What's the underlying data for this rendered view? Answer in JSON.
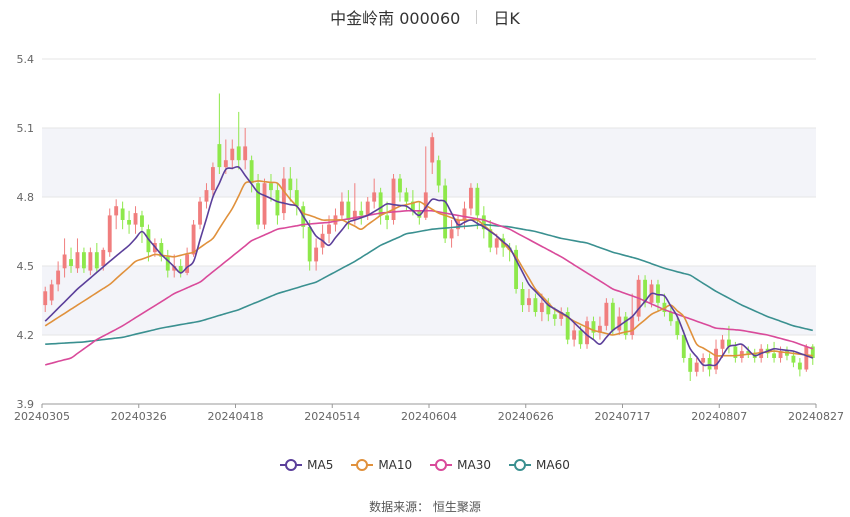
{
  "header": {
    "name": "中金岭南 000060",
    "period": "日K"
  },
  "source_text": "数据来源： 恒生聚源",
  "legend": [
    {
      "label": "MA5",
      "color": "#5b3f9a"
    },
    {
      "label": "MA10",
      "color": "#e0913c"
    },
    {
      "label": "MA30",
      "color": "#d94a9a"
    },
    {
      "label": "MA60",
      "color": "#3a9090"
    }
  ],
  "colors": {
    "up": "#f07e7e",
    "down": "#8ee84b",
    "band": "#f3f4f9",
    "grid": "#e6e6e6"
  },
  "chart_data": {
    "type": "candlestick",
    "title": "中金岭南 000060",
    "subtitle": "日K",
    "ylim": [
      3.9,
      5.4
    ],
    "y_ticks": [
      3.9,
      4.2,
      4.5,
      4.8,
      5.1,
      5.4
    ],
    "x_ticks": [
      "20240305",
      "20240326",
      "20240418",
      "20240514",
      "20240604",
      "20240626",
      "20240717",
      "20240807",
      "20240827"
    ],
    "n_bars": 120,
    "grid": true,
    "legend_position": "bottom",
    "candles": [
      [
        4.33,
        4.39,
        4.3,
        4.41
      ],
      [
        4.35,
        4.42,
        4.33,
        4.44
      ],
      [
        4.42,
        4.48,
        4.39,
        4.52
      ],
      [
        4.49,
        4.55,
        4.45,
        4.62
      ],
      [
        4.53,
        4.5,
        4.47,
        4.58
      ],
      [
        4.49,
        4.56,
        4.47,
        4.62
      ],
      [
        4.56,
        4.49,
        4.47,
        4.58
      ],
      [
        4.48,
        4.56,
        4.46,
        4.58
      ],
      [
        4.56,
        4.49,
        4.47,
        4.6
      ],
      [
        4.5,
        4.57,
        4.48,
        4.58
      ],
      [
        4.56,
        4.72,
        4.54,
        4.75
      ],
      [
        4.72,
        4.76,
        4.66,
        4.79
      ],
      [
        4.75,
        4.7,
        4.66,
        4.78
      ],
      [
        4.7,
        4.68,
        4.64,
        4.74
      ],
      [
        4.68,
        4.73,
        4.64,
        4.76
      ],
      [
        4.72,
        4.67,
        4.6,
        4.74
      ],
      [
        4.66,
        4.56,
        4.52,
        4.68
      ],
      [
        4.56,
        4.6,
        4.54,
        4.62
      ],
      [
        4.6,
        4.54,
        4.52,
        4.62
      ],
      [
        4.54,
        4.48,
        4.45,
        4.57
      ],
      [
        4.48,
        4.5,
        4.45,
        4.55
      ],
      [
        4.5,
        4.47,
        4.45,
        4.53
      ],
      [
        4.47,
        4.55,
        4.46,
        4.58
      ],
      [
        4.55,
        4.68,
        4.54,
        4.7
      ],
      [
        4.68,
        4.78,
        4.66,
        4.8
      ],
      [
        4.78,
        4.83,
        4.75,
        4.86
      ],
      [
        4.83,
        4.93,
        4.8,
        4.95
      ],
      [
        5.03,
        4.93,
        4.9,
        5.25
      ],
      [
        4.93,
        4.96,
        4.9,
        5.05
      ],
      [
        4.96,
        5.01,
        4.92,
        5.05
      ],
      [
        5.02,
        4.96,
        4.92,
        5.17
      ],
      [
        4.96,
        5.02,
        4.92,
        5.1
      ],
      [
        4.96,
        4.86,
        4.82,
        4.98
      ],
      [
        4.86,
        4.68,
        4.66,
        4.9
      ],
      [
        4.68,
        4.86,
        4.66,
        4.88
      ],
      [
        4.86,
        4.83,
        4.78,
        4.9
      ],
      [
        4.83,
        4.72,
        4.68,
        4.86
      ],
      [
        4.73,
        4.88,
        4.7,
        4.93
      ],
      [
        4.88,
        4.83,
        4.78,
        4.93
      ],
      [
        4.83,
        4.76,
        4.72,
        4.88
      ],
      [
        4.76,
        4.67,
        4.62,
        4.78
      ],
      [
        4.67,
        4.52,
        4.48,
        4.7
      ],
      [
        4.52,
        4.58,
        4.48,
        4.62
      ],
      [
        4.58,
        4.64,
        4.55,
        4.68
      ],
      [
        4.64,
        4.68,
        4.6,
        4.72
      ],
      [
        4.68,
        4.72,
        4.65,
        4.75
      ],
      [
        4.72,
        4.78,
        4.7,
        4.82
      ],
      [
        4.78,
        4.7,
        4.66,
        4.83
      ],
      [
        4.7,
        4.74,
        4.68,
        4.86
      ],
      [
        4.74,
        4.72,
        4.68,
        4.78
      ],
      [
        4.72,
        4.78,
        4.7,
        4.8
      ],
      [
        4.78,
        4.82,
        4.75,
        4.88
      ],
      [
        4.82,
        4.72,
        4.68,
        4.84
      ],
      [
        4.72,
        4.7,
        4.66,
        4.78
      ],
      [
        4.7,
        4.88,
        4.68,
        4.9
      ],
      [
        4.88,
        4.82,
        4.78,
        4.9
      ],
      [
        4.82,
        4.78,
        4.74,
        4.84
      ],
      [
        4.78,
        4.74,
        4.72,
        4.83
      ],
      [
        4.74,
        4.71,
        4.68,
        4.78
      ],
      [
        4.71,
        4.82,
        4.7,
        5.02
      ],
      [
        4.95,
        5.06,
        4.9,
        5.08
      ],
      [
        4.96,
        4.85,
        4.82,
        4.98
      ],
      [
        4.85,
        4.62,
        4.6,
        4.88
      ],
      [
        4.62,
        4.66,
        4.58,
        4.7
      ],
      [
        4.66,
        4.7,
        4.63,
        4.72
      ],
      [
        4.7,
        4.75,
        4.66,
        4.78
      ],
      [
        4.75,
        4.84,
        4.72,
        4.86
      ],
      [
        4.84,
        4.72,
        4.66,
        4.86
      ],
      [
        4.72,
        4.66,
        4.62,
        4.76
      ],
      [
        4.66,
        4.58,
        4.56,
        4.7
      ],
      [
        4.58,
        4.62,
        4.55,
        4.64
      ],
      [
        4.62,
        4.58,
        4.54,
        4.64
      ],
      [
        4.58,
        4.57,
        4.52,
        4.6
      ],
      [
        4.57,
        4.4,
        4.38,
        4.59
      ],
      [
        4.4,
        4.33,
        4.3,
        4.43
      ],
      [
        4.33,
        4.36,
        4.3,
        4.4
      ],
      [
        4.36,
        4.3,
        4.28,
        4.38
      ],
      [
        4.3,
        4.34,
        4.26,
        4.38
      ],
      [
        4.34,
        4.29,
        4.26,
        4.36
      ],
      [
        4.29,
        4.27,
        4.24,
        4.32
      ],
      [
        4.27,
        4.3,
        4.24,
        4.32
      ],
      [
        4.3,
        4.18,
        4.16,
        4.32
      ],
      [
        4.18,
        4.22,
        4.15,
        4.26
      ],
      [
        4.22,
        4.16,
        4.14,
        4.24
      ],
      [
        4.16,
        4.26,
        4.14,
        4.28
      ],
      [
        4.26,
        4.21,
        4.18,
        4.28
      ],
      [
        4.21,
        4.24,
        4.18,
        4.28
      ],
      [
        4.24,
        4.34,
        4.22,
        4.36
      ],
      [
        4.34,
        4.22,
        4.2,
        4.36
      ],
      [
        4.22,
        4.28,
        4.2,
        4.32
      ],
      [
        4.28,
        4.2,
        4.18,
        4.3
      ],
      [
        4.2,
        4.28,
        4.18,
        4.38
      ],
      [
        4.28,
        4.44,
        4.26,
        4.46
      ],
      [
        4.44,
        4.34,
        4.32,
        4.46
      ],
      [
        4.34,
        4.42,
        4.32,
        4.44
      ],
      [
        4.42,
        4.34,
        4.3,
        4.44
      ],
      [
        4.34,
        4.3,
        4.28,
        4.38
      ],
      [
        4.3,
        4.26,
        4.24,
        4.32
      ],
      [
        4.26,
        4.2,
        4.18,
        4.28
      ],
      [
        4.2,
        4.1,
        4.08,
        4.22
      ],
      [
        4.1,
        4.04,
        4.0,
        4.12
      ],
      [
        4.04,
        4.08,
        4.02,
        4.1
      ],
      [
        4.08,
        4.1,
        4.04,
        4.12
      ],
      [
        4.1,
        4.05,
        4.02,
        4.12
      ],
      [
        4.05,
        4.14,
        4.03,
        4.18
      ],
      [
        4.14,
        4.18,
        4.1,
        4.2
      ],
      [
        4.18,
        4.15,
        4.12,
        4.24
      ],
      [
        4.15,
        4.1,
        4.08,
        4.17
      ],
      [
        4.1,
        4.13,
        4.08,
        4.16
      ],
      [
        4.13,
        4.12,
        4.1,
        4.15
      ],
      [
        4.12,
        4.1,
        4.08,
        4.14
      ],
      [
        4.1,
        4.14,
        4.08,
        4.16
      ],
      [
        4.14,
        4.12,
        4.1,
        4.16
      ],
      [
        4.12,
        4.1,
        4.08,
        4.17
      ],
      [
        4.1,
        4.13,
        4.08,
        4.15
      ],
      [
        4.13,
        4.11,
        4.09,
        4.15
      ],
      [
        4.11,
        4.08,
        4.06,
        4.13
      ],
      [
        4.08,
        4.05,
        4.02,
        4.1
      ],
      [
        4.05,
        4.15,
        4.04,
        4.16
      ],
      [
        4.15,
        4.1,
        4.07,
        4.16
      ]
    ],
    "series": [
      {
        "name": "MA5",
        "anchors": [
          [
            0,
            4.26
          ],
          [
            5,
            4.4
          ],
          [
            10,
            4.52
          ],
          [
            13,
            4.59
          ],
          [
            15,
            4.65
          ],
          [
            18,
            4.55
          ],
          [
            21,
            4.47
          ],
          [
            23,
            4.52
          ],
          [
            26,
            4.8
          ],
          [
            28,
            4.92
          ],
          [
            30,
            4.93
          ],
          [
            33,
            4.82
          ],
          [
            36,
            4.78
          ],
          [
            39,
            4.76
          ],
          [
            42,
            4.63
          ],
          [
            44,
            4.59
          ],
          [
            47,
            4.69
          ],
          [
            50,
            4.72
          ],
          [
            53,
            4.77
          ],
          [
            56,
            4.76
          ],
          [
            58,
            4.72
          ],
          [
            60,
            4.79
          ],
          [
            62,
            4.78
          ],
          [
            64,
            4.68
          ],
          [
            66,
            4.7
          ],
          [
            68,
            4.67
          ],
          [
            70,
            4.63
          ],
          [
            72,
            4.58
          ],
          [
            75,
            4.42
          ],
          [
            78,
            4.33
          ],
          [
            81,
            4.28
          ],
          [
            84,
            4.2
          ],
          [
            86,
            4.16
          ],
          [
            88,
            4.22
          ],
          [
            91,
            4.28
          ],
          [
            94,
            4.38
          ],
          [
            96,
            4.37
          ],
          [
            98,
            4.28
          ],
          [
            100,
            4.14
          ],
          [
            102,
            4.07
          ],
          [
            104,
            4.07
          ],
          [
            106,
            4.15
          ],
          [
            108,
            4.16
          ],
          [
            110,
            4.11
          ],
          [
            113,
            4.14
          ],
          [
            116,
            4.13
          ],
          [
            119,
            4.1
          ]
        ]
      },
      {
        "name": "MA10",
        "anchors": [
          [
            0,
            4.24
          ],
          [
            5,
            4.33
          ],
          [
            10,
            4.42
          ],
          [
            14,
            4.52
          ],
          [
            17,
            4.55
          ],
          [
            20,
            4.54
          ],
          [
            23,
            4.56
          ],
          [
            26,
            4.62
          ],
          [
            29,
            4.75
          ],
          [
            31,
            4.86
          ],
          [
            33,
            4.87
          ],
          [
            36,
            4.86
          ],
          [
            38,
            4.79
          ],
          [
            40,
            4.73
          ],
          [
            43,
            4.7
          ],
          [
            46,
            4.7
          ],
          [
            49,
            4.66
          ],
          [
            52,
            4.72
          ],
          [
            55,
            4.76
          ],
          [
            58,
            4.78
          ],
          [
            61,
            4.73
          ],
          [
            64,
            4.7
          ],
          [
            67,
            4.7
          ],
          [
            70,
            4.63
          ],
          [
            73,
            4.54
          ],
          [
            76,
            4.4
          ],
          [
            79,
            4.31
          ],
          [
            82,
            4.26
          ],
          [
            85,
            4.22
          ],
          [
            88,
            4.2
          ],
          [
            91,
            4.22
          ],
          [
            94,
            4.29
          ],
          [
            97,
            4.33
          ],
          [
            99,
            4.28
          ],
          [
            101,
            4.16
          ],
          [
            104,
            4.11
          ],
          [
            107,
            4.11
          ],
          [
            110,
            4.12
          ],
          [
            113,
            4.13
          ],
          [
            116,
            4.12
          ],
          [
            119,
            4.11
          ]
        ]
      },
      {
        "name": "MA30",
        "anchors": [
          [
            0,
            4.07
          ],
          [
            4,
            4.1
          ],
          [
            8,
            4.18
          ],
          [
            12,
            4.24
          ],
          [
            16,
            4.31
          ],
          [
            20,
            4.38
          ],
          [
            24,
            4.43
          ],
          [
            28,
            4.52
          ],
          [
            32,
            4.61
          ],
          [
            36,
            4.66
          ],
          [
            40,
            4.68
          ],
          [
            44,
            4.69
          ],
          [
            48,
            4.71
          ],
          [
            52,
            4.73
          ],
          [
            56,
            4.74
          ],
          [
            60,
            4.74
          ],
          [
            64,
            4.72
          ],
          [
            68,
            4.7
          ],
          [
            72,
            4.66
          ],
          [
            76,
            4.6
          ],
          [
            80,
            4.54
          ],
          [
            84,
            4.47
          ],
          [
            88,
            4.4
          ],
          [
            92,
            4.36
          ],
          [
            96,
            4.31
          ],
          [
            100,
            4.27
          ],
          [
            104,
            4.23
          ],
          [
            108,
            4.22
          ],
          [
            112,
            4.2
          ],
          [
            116,
            4.17
          ],
          [
            119,
            4.14
          ]
        ]
      },
      {
        "name": "MA60",
        "anchors": [
          [
            0,
            4.16
          ],
          [
            6,
            4.17
          ],
          [
            12,
            4.19
          ],
          [
            18,
            4.23
          ],
          [
            24,
            4.26
          ],
          [
            30,
            4.31
          ],
          [
            36,
            4.38
          ],
          [
            42,
            4.43
          ],
          [
            48,
            4.52
          ],
          [
            52,
            4.59
          ],
          [
            56,
            4.64
          ],
          [
            60,
            4.66
          ],
          [
            64,
            4.67
          ],
          [
            68,
            4.68
          ],
          [
            72,
            4.67
          ],
          [
            76,
            4.65
          ],
          [
            80,
            4.62
          ],
          [
            84,
            4.6
          ],
          [
            88,
            4.56
          ],
          [
            92,
            4.53
          ],
          [
            96,
            4.49
          ],
          [
            100,
            4.46
          ],
          [
            104,
            4.39
          ],
          [
            108,
            4.33
          ],
          [
            112,
            4.28
          ],
          [
            116,
            4.24
          ],
          [
            119,
            4.22
          ]
        ]
      }
    ]
  }
}
